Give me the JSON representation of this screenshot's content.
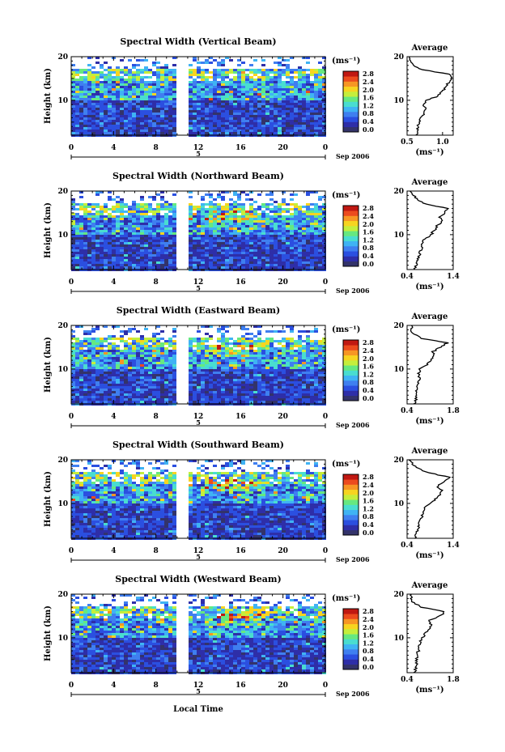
{
  "figure": {
    "xlabel": "Local Time",
    "date_label": "Sep 2006",
    "day_label": "5"
  },
  "colorbar": {
    "unit": "(ms⁻¹)",
    "ticks": [
      "0.0",
      "0.4",
      "0.8",
      "1.2",
      "1.6",
      "2.0",
      "2.4",
      "2.8"
    ],
    "colors": [
      "#33336a",
      "#2e2ea8",
      "#2b4fe0",
      "#3f7ff0",
      "#3fb3f4",
      "#49ddd0",
      "#66e880",
      "#c5ee3c",
      "#f7d420",
      "#f79624",
      "#ec4b1e",
      "#c01812"
    ]
  },
  "chart_data": [
    {
      "type": "heatmap",
      "title": "Spectral Width (Vertical Beam)",
      "ylabel": "Height (km)",
      "x_ticks": [
        "0",
        "4",
        "8",
        "12",
        "16",
        "20",
        "0"
      ],
      "xlim": [
        0,
        24
      ],
      "y_ticks": [
        "10",
        "20"
      ],
      "ylim": [
        2,
        20
      ],
      "value_range": [
        0.0,
        2.8
      ],
      "profile": {
        "title": "Average",
        "xlabel": "(ms⁻¹)",
        "x_ticks": [
          "0.5",
          "1.0"
        ],
        "xlim": [
          0.5,
          1.15
        ],
        "heights": [
          2,
          3,
          4,
          5,
          6,
          7,
          8,
          9,
          10,
          11,
          12,
          13,
          14,
          15,
          16,
          17,
          18,
          19,
          20
        ],
        "values": [
          0.62,
          0.66,
          0.64,
          0.68,
          0.7,
          0.74,
          0.76,
          0.72,
          0.78,
          0.94,
          0.99,
          1.05,
          1.08,
          1.13,
          1.09,
          0.72,
          0.58,
          0.55,
          0.54
        ]
      }
    },
    {
      "type": "heatmap",
      "title": "Spectral Width (Northward Beam)",
      "ylabel": "Height (km)",
      "x_ticks": [
        "0",
        "4",
        "8",
        "12",
        "16",
        "20",
        "0"
      ],
      "xlim": [
        0,
        24
      ],
      "y_ticks": [
        "10",
        "20"
      ],
      "ylim": [
        2,
        20
      ],
      "value_range": [
        0.0,
        2.8
      ],
      "profile": {
        "title": "Average",
        "xlabel": "(ms⁻¹)",
        "x_ticks": [
          "0.4",
          "1.4"
        ],
        "xlim": [
          0.4,
          1.4
        ],
        "heights": [
          2,
          3,
          4,
          5,
          6,
          7,
          8,
          9,
          10,
          11,
          12,
          13,
          14,
          15,
          16,
          17,
          18,
          19,
          20
        ],
        "values": [
          0.56,
          0.6,
          0.62,
          0.65,
          0.68,
          0.72,
          0.74,
          0.78,
          0.92,
          0.99,
          1.05,
          1.15,
          1.1,
          1.22,
          1.27,
          0.82,
          0.62,
          0.55,
          0.48
        ]
      }
    },
    {
      "type": "heatmap",
      "title": "Spectral Width (Eastward Beam)",
      "ylabel": "Height (km)",
      "x_ticks": [
        "0",
        "4",
        "8",
        "12",
        "16",
        "20",
        "0"
      ],
      "xlim": [
        0,
        24
      ],
      "y_ticks": [
        "10",
        "20"
      ],
      "ylim": [
        2,
        20
      ],
      "value_range": [
        0.0,
        2.8
      ],
      "profile": {
        "title": "Average",
        "xlabel": "(ms⁻¹)",
        "x_ticks": [
          "0.4",
          "1.8"
        ],
        "xlim": [
          0.4,
          1.8
        ],
        "heights": [
          2,
          3,
          4,
          5,
          6,
          7,
          8,
          9,
          10,
          11,
          12,
          13,
          14,
          15,
          16,
          17,
          18,
          19,
          20
        ],
        "values": [
          0.64,
          0.66,
          0.7,
          0.68,
          0.72,
          0.74,
          0.78,
          0.76,
          0.8,
          1.02,
          1.12,
          1.22,
          1.18,
          1.42,
          1.62,
          0.86,
          0.6,
          0.52,
          0.56
        ]
      }
    },
    {
      "type": "heatmap",
      "title": "Spectral Width (Southward Beam)",
      "ylabel": "Height (km)",
      "x_ticks": [
        "0",
        "4",
        "8",
        "12",
        "16",
        "20",
        "0"
      ],
      "xlim": [
        0,
        24
      ],
      "y_ticks": [
        "10",
        "20"
      ],
      "ylim": [
        2,
        20
      ],
      "value_range": [
        0.0,
        2.8
      ],
      "profile": {
        "title": "Average",
        "xlabel": "(ms⁻¹)",
        "x_ticks": [
          "0.4",
          "1.4"
        ],
        "xlim": [
          0.4,
          1.4
        ],
        "heights": [
          2,
          3,
          4,
          5,
          6,
          7,
          8,
          9,
          10,
          11,
          12,
          13,
          14,
          15,
          16,
          17,
          18,
          19,
          20
        ],
        "values": [
          0.58,
          0.6,
          0.64,
          0.66,
          0.68,
          0.72,
          0.76,
          0.8,
          0.9,
          1.02,
          1.1,
          1.14,
          1.06,
          1.22,
          1.3,
          0.88,
          0.64,
          0.52,
          0.44
        ]
      }
    },
    {
      "type": "heatmap",
      "title": "Spectral Width (Westward Beam)",
      "ylabel": "Height (km)",
      "x_ticks": [
        "0",
        "4",
        "8",
        "12",
        "16",
        "20",
        "0"
      ],
      "xlim": [
        0,
        24
      ],
      "y_ticks": [
        "10",
        "20"
      ],
      "ylim": [
        2,
        20
      ],
      "value_range": [
        0.0,
        2.8
      ],
      "profile": {
        "title": "Average",
        "xlabel": "(ms⁻¹)",
        "x_ticks": [
          "0.4",
          "1.8"
        ],
        "xlim": [
          0.4,
          1.8
        ],
        "heights": [
          2,
          3,
          4,
          5,
          6,
          7,
          8,
          9,
          10,
          11,
          12,
          13,
          14,
          15,
          16,
          17,
          18,
          19,
          20
        ],
        "values": [
          0.62,
          0.66,
          0.7,
          0.68,
          0.72,
          0.74,
          0.76,
          0.8,
          0.88,
          0.96,
          1.06,
          1.12,
          1.08,
          1.4,
          1.55,
          0.84,
          0.6,
          0.52,
          0.5
        ]
      }
    }
  ]
}
